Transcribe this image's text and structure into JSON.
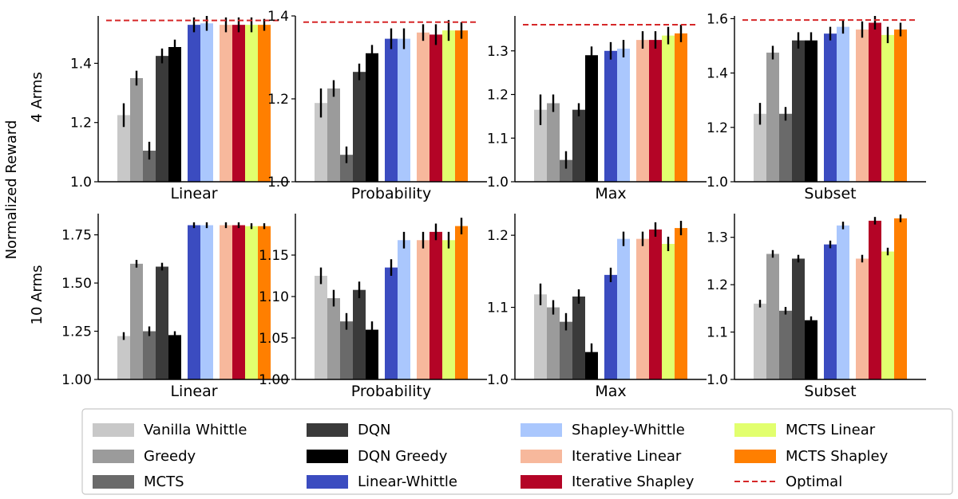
{
  "figure": {
    "ylabel": "Normalized Reward",
    "row_labels": [
      "4 Arms",
      "10 Arms"
    ]
  },
  "legend": [
    {
      "label": "Vanilla Whittle",
      "color": "#c8c8c8",
      "kind": "bar"
    },
    {
      "label": "Greedy",
      "color": "#9b9b9b",
      "kind": "bar"
    },
    {
      "label": "MCTS",
      "color": "#6a6a6a",
      "kind": "bar"
    },
    {
      "label": "DQN",
      "color": "#3a3a3a",
      "kind": "bar"
    },
    {
      "label": "DQN Greedy",
      "color": "#000000",
      "kind": "bar"
    },
    {
      "label": "Linear-Whittle",
      "color": "#3b4cc0",
      "kind": "bar"
    },
    {
      "label": "Shapley-Whittle",
      "color": "#aac7fd",
      "kind": "bar"
    },
    {
      "label": "Iterative Linear",
      "color": "#f7b89c",
      "kind": "bar"
    },
    {
      "label": "Iterative Shapley",
      "color": "#b40426",
      "kind": "bar"
    },
    {
      "label": "MCTS Linear",
      "color": "#e2ff6e",
      "kind": "bar"
    },
    {
      "label": "MCTS Shapley",
      "color": "#ff7f00",
      "kind": "bar"
    },
    {
      "label": "Optimal",
      "color": "#d62728",
      "kind": "dashed"
    }
  ],
  "chart_data": [
    {
      "type": "bar",
      "row": 0,
      "col": 0,
      "xlabel": "Linear",
      "ylim": [
        1.0,
        1.56
      ],
      "yticks": [
        "1.0",
        "1.2",
        "1.4"
      ],
      "optimal": 1.545,
      "series": [
        {
          "name": "Vanilla Whittle",
          "value": 1.225,
          "err": 0.04
        },
        {
          "name": "Greedy",
          "value": 1.35,
          "err": 0.025
        },
        {
          "name": "MCTS",
          "value": 1.105,
          "err": 0.03
        },
        {
          "name": "DQN",
          "value": 1.425,
          "err": 0.025
        },
        {
          "name": "DQN Greedy",
          "value": 1.455,
          "err": 0.025
        },
        {
          "name": "Linear-Whittle",
          "value": 1.53,
          "err": 0.025
        },
        {
          "name": "Shapley-Whittle",
          "value": 1.535,
          "err": 0.025
        },
        {
          "name": "Iterative Linear",
          "value": 1.53,
          "err": 0.025
        },
        {
          "name": "Iterative Shapley",
          "value": 1.53,
          "err": 0.025
        },
        {
          "name": "MCTS Linear",
          "value": 1.53,
          "err": 0.025
        },
        {
          "name": "MCTS Shapley",
          "value": 1.53,
          "err": 0.02
        }
      ]
    },
    {
      "type": "bar",
      "row": 0,
      "col": 1,
      "xlabel": "Probability",
      "ylim": [
        1.0,
        1.4
      ],
      "yticks": [
        "1.0",
        "1.2",
        "1.4"
      ],
      "optimal": 1.385,
      "series": [
        {
          "name": "Vanilla Whittle",
          "value": 1.19,
          "err": 0.035
        },
        {
          "name": "Greedy",
          "value": 1.225,
          "err": 0.02
        },
        {
          "name": "MCTS",
          "value": 1.065,
          "err": 0.02
        },
        {
          "name": "DQN",
          "value": 1.265,
          "err": 0.02
        },
        {
          "name": "DQN Greedy",
          "value": 1.31,
          "err": 0.02
        },
        {
          "name": "Linear-Whittle",
          "value": 1.345,
          "err": 0.025
        },
        {
          "name": "Shapley-Whittle",
          "value": 1.345,
          "err": 0.025
        },
        {
          "name": "Iterative Linear",
          "value": 1.36,
          "err": 0.02
        },
        {
          "name": "Iterative Shapley",
          "value": 1.355,
          "err": 0.025
        },
        {
          "name": "MCTS Linear",
          "value": 1.365,
          "err": 0.025
        },
        {
          "name": "MCTS Shapley",
          "value": 1.365,
          "err": 0.02
        }
      ]
    },
    {
      "type": "bar",
      "row": 0,
      "col": 2,
      "xlabel": "Max",
      "ylim": [
        1.0,
        1.38
      ],
      "yticks": [
        "1.0",
        "1.1",
        "1.2",
        "1.3"
      ],
      "optimal": 1.36,
      "series": [
        {
          "name": "Vanilla Whittle",
          "value": 1.165,
          "err": 0.035
        },
        {
          "name": "Greedy",
          "value": 1.18,
          "err": 0.02
        },
        {
          "name": "MCTS",
          "value": 1.05,
          "err": 0.02
        },
        {
          "name": "DQN",
          "value": 1.165,
          "err": 0.015
        },
        {
          "name": "DQN Greedy",
          "value": 1.29,
          "err": 0.02
        },
        {
          "name": "Linear-Whittle",
          "value": 1.3,
          "err": 0.02
        },
        {
          "name": "Shapley-Whittle",
          "value": 1.305,
          "err": 0.02
        },
        {
          "name": "Iterative Linear",
          "value": 1.325,
          "err": 0.02
        },
        {
          "name": "Iterative Shapley",
          "value": 1.325,
          "err": 0.02
        },
        {
          "name": "MCTS Linear",
          "value": 1.335,
          "err": 0.02
        },
        {
          "name": "MCTS Shapley",
          "value": 1.34,
          "err": 0.02
        }
      ]
    },
    {
      "type": "bar",
      "row": 0,
      "col": 3,
      "xlabel": "Subset",
      "ylim": [
        1.0,
        1.61
      ],
      "yticks": [
        "1.0",
        "1.2",
        "1.4",
        "1.6"
      ],
      "optimal": 1.595,
      "series": [
        {
          "name": "Vanilla Whittle",
          "value": 1.25,
          "err": 0.04
        },
        {
          "name": "Greedy",
          "value": 1.475,
          "err": 0.025
        },
        {
          "name": "MCTS",
          "value": 1.25,
          "err": 0.025
        },
        {
          "name": "DQN",
          "value": 1.52,
          "err": 0.03
        },
        {
          "name": "DQN Greedy",
          "value": 1.52,
          "err": 0.03
        },
        {
          "name": "Linear-Whittle",
          "value": 1.545,
          "err": 0.025
        },
        {
          "name": "Shapley-Whittle",
          "value": 1.57,
          "err": 0.025
        },
        {
          "name": "Iterative Linear",
          "value": 1.56,
          "err": 0.03
        },
        {
          "name": "Iterative Shapley",
          "value": 1.585,
          "err": 0.025
        },
        {
          "name": "MCTS Linear",
          "value": 1.54,
          "err": 0.03
        },
        {
          "name": "MCTS Shapley",
          "value": 1.56,
          "err": 0.025
        }
      ]
    },
    {
      "type": "bar",
      "row": 1,
      "col": 0,
      "xlabel": "Linear",
      "ylim": [
        1.0,
        1.86
      ],
      "yticks": [
        "1.00",
        "1.25",
        "1.50",
        "1.75"
      ],
      "optimal": null,
      "series": [
        {
          "name": "Vanilla Whittle",
          "value": 1.225,
          "err": 0.02
        },
        {
          "name": "Greedy",
          "value": 1.6,
          "err": 0.02
        },
        {
          "name": "MCTS",
          "value": 1.25,
          "err": 0.025
        },
        {
          "name": "DQN",
          "value": 1.585,
          "err": 0.02
        },
        {
          "name": "DQN Greedy",
          "value": 1.23,
          "err": 0.02
        },
        {
          "name": "Linear-Whittle",
          "value": 1.8,
          "err": 0.015
        },
        {
          "name": "Shapley-Whittle",
          "value": 1.8,
          "err": 0.015
        },
        {
          "name": "Iterative Linear",
          "value": 1.8,
          "err": 0.015
        },
        {
          "name": "Iterative Shapley",
          "value": 1.8,
          "err": 0.015
        },
        {
          "name": "MCTS Linear",
          "value": 1.795,
          "err": 0.015
        },
        {
          "name": "MCTS Shapley",
          "value": 1.795,
          "err": 0.015
        }
      ]
    },
    {
      "type": "bar",
      "row": 1,
      "col": 1,
      "xlabel": "Probability",
      "ylim": [
        1.0,
        1.2
      ],
      "yticks": [
        "1.00",
        "1.05",
        "1.10",
        "1.15"
      ],
      "optimal": null,
      "series": [
        {
          "name": "Vanilla Whittle",
          "value": 1.125,
          "err": 0.01
        },
        {
          "name": "Greedy",
          "value": 1.098,
          "err": 0.01
        },
        {
          "name": "MCTS",
          "value": 1.07,
          "err": 0.01
        },
        {
          "name": "DQN",
          "value": 1.108,
          "err": 0.01
        },
        {
          "name": "DQN Greedy",
          "value": 1.06,
          "err": 0.01
        },
        {
          "name": "Linear-Whittle",
          "value": 1.135,
          "err": 0.01
        },
        {
          "name": "Shapley-Whittle",
          "value": 1.168,
          "err": 0.01
        },
        {
          "name": "Iterative Linear",
          "value": 1.168,
          "err": 0.01
        },
        {
          "name": "Iterative Shapley",
          "value": 1.178,
          "err": 0.01
        },
        {
          "name": "MCTS Linear",
          "value": 1.168,
          "err": 0.01
        },
        {
          "name": "MCTS Shapley",
          "value": 1.185,
          "err": 0.01
        }
      ]
    },
    {
      "type": "bar",
      "row": 1,
      "col": 2,
      "xlabel": "Max",
      "ylim": [
        1.0,
        1.23
      ],
      "yticks": [
        "1.0",
        "1.1",
        "1.2"
      ],
      "optimal": null,
      "series": [
        {
          "name": "Vanilla Whittle",
          "value": 1.118,
          "err": 0.015
        },
        {
          "name": "Greedy",
          "value": 1.1,
          "err": 0.01
        },
        {
          "name": "MCTS",
          "value": 1.08,
          "err": 0.012
        },
        {
          "name": "DQN",
          "value": 1.115,
          "err": 0.01
        },
        {
          "name": "DQN Greedy",
          "value": 1.038,
          "err": 0.012
        },
        {
          "name": "Linear-Whittle",
          "value": 1.145,
          "err": 0.01
        },
        {
          "name": "Shapley-Whittle",
          "value": 1.195,
          "err": 0.01
        },
        {
          "name": "Iterative Linear",
          "value": 1.195,
          "err": 0.01
        },
        {
          "name": "Iterative Shapley",
          "value": 1.208,
          "err": 0.01
        },
        {
          "name": "MCTS Linear",
          "value": 1.188,
          "err": 0.01
        },
        {
          "name": "MCTS Shapley",
          "value": 1.21,
          "err": 0.01
        }
      ]
    },
    {
      "type": "bar",
      "row": 1,
      "col": 3,
      "xlabel": "Subset",
      "ylim": [
        1.0,
        1.35
      ],
      "yticks": [
        "1.0",
        "1.1",
        "1.2",
        "1.3"
      ],
      "optimal": null,
      "series": [
        {
          "name": "Vanilla Whittle",
          "value": 1.16,
          "err": 0.008
        },
        {
          "name": "Greedy",
          "value": 1.265,
          "err": 0.008
        },
        {
          "name": "MCTS",
          "value": 1.145,
          "err": 0.008
        },
        {
          "name": "DQN",
          "value": 1.255,
          "err": 0.008
        },
        {
          "name": "DQN Greedy",
          "value": 1.125,
          "err": 0.008
        },
        {
          "name": "Linear-Whittle",
          "value": 1.285,
          "err": 0.008
        },
        {
          "name": "Shapley-Whittle",
          "value": 1.325,
          "err": 0.008
        },
        {
          "name": "Iterative Linear",
          "value": 1.255,
          "err": 0.008
        },
        {
          "name": "Iterative Shapley",
          "value": 1.335,
          "err": 0.008
        },
        {
          "name": "MCTS Linear",
          "value": 1.27,
          "err": 0.008
        },
        {
          "name": "MCTS Shapley",
          "value": 1.34,
          "err": 0.008
        }
      ]
    }
  ]
}
